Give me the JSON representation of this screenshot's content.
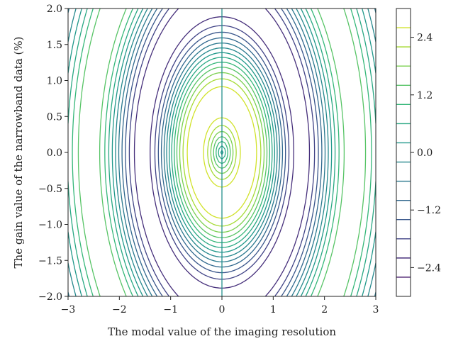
{
  "chart_data": {
    "type": "contour",
    "xlabel": "The modal value of the imaging resolution",
    "ylabel": "The gain value of the narrowband data (%)",
    "xlim": [
      -3,
      3
    ],
    "ylim": [
      -2.0,
      2.0
    ],
    "x_ticks": [
      "−3",
      "−2",
      "−1",
      "0",
      "1",
      "2",
      "3"
    ],
    "x_tick_values": [
      -3,
      -2,
      -1,
      0,
      1,
      2,
      3
    ],
    "y_ticks": [
      "−2.0",
      "−1.5",
      "−1.0",
      "−0.5",
      "0.0",
      "0.5",
      "1.0",
      "1.5",
      "2.0"
    ],
    "y_tick_values": [
      -2.0,
      -1.5,
      -1.0,
      -0.5,
      0.0,
      0.5,
      1.0,
      1.5,
      2.0
    ],
    "levels": [
      -3.0,
      -2.6,
      -2.2,
      -1.8,
      -1.4,
      -1.0,
      -0.6,
      -0.2,
      0.2,
      0.6,
      1.0,
      1.4,
      1.8,
      2.2,
      2.6,
      3.0
    ],
    "colorbar": {
      "range": [
        -3.0,
        3.0
      ],
      "ticks": [
        "−2.4",
        "−1.2",
        "0.0",
        "1.2",
        "2.4"
      ],
      "tick_values": [
        -2.4,
        -1.2,
        0.0,
        1.2,
        2.4
      ],
      "colormap": "viridis"
    }
  }
}
